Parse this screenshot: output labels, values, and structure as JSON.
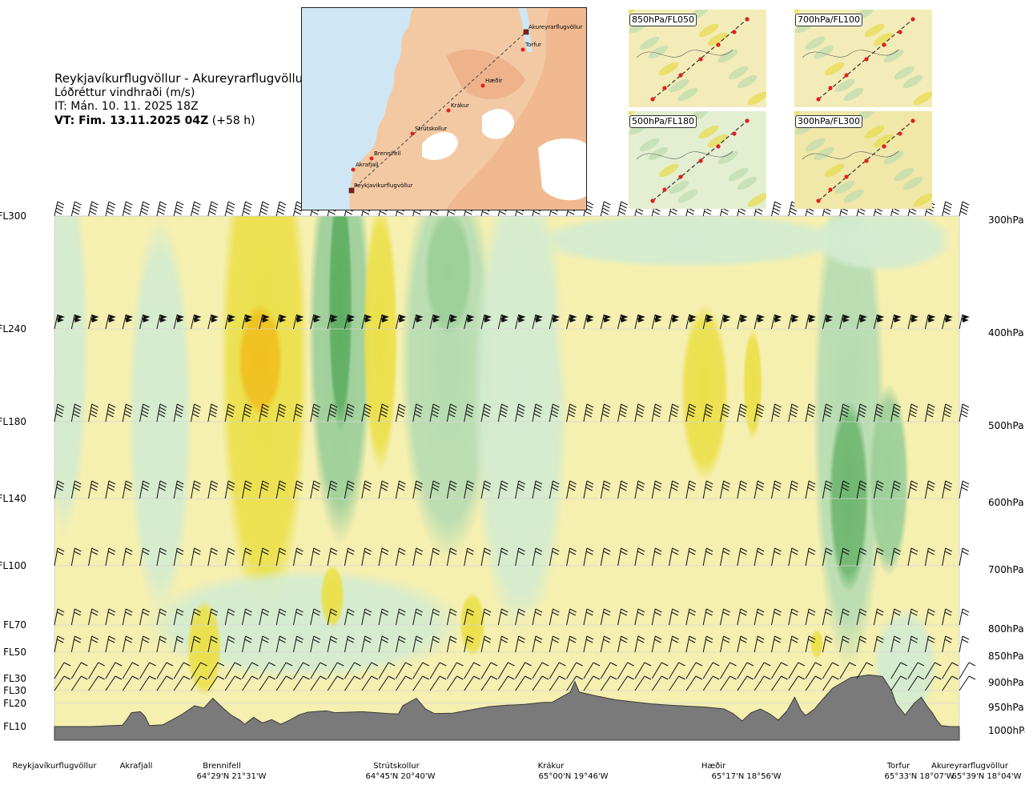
{
  "header": {
    "route": "Reykjavíkurflugvöllur - Akureyrarflugvöllur",
    "quantity": "Lóðréttur vindhraði (m/s)",
    "it": "IT: Mán. 10. 11. 2025 18Z",
    "vt_bold": "VT: Fim. 13.11.2025 04Z",
    "vt_lead": "(+58 h)"
  },
  "inset_map": {
    "points": [
      {
        "name": "Akureyrarflugvöllur",
        "marker": "square"
      },
      {
        "name": "Torfur",
        "marker": "dot"
      },
      {
        "name": "Hæðir",
        "marker": "dot"
      },
      {
        "name": "Krákur",
        "marker": "dot"
      },
      {
        "name": "Strútskollur",
        "marker": "dot"
      },
      {
        "name": "Brennifell",
        "marker": "dot"
      },
      {
        "name": "Akrafjall",
        "marker": "dot"
      },
      {
        "name": "Reykjavíkurflugvöllur",
        "marker": "square"
      }
    ]
  },
  "thumbnails": [
    {
      "label": "850hPa/FL050"
    },
    {
      "label": "700hPa/FL100"
    },
    {
      "label": "500hPa/FL180"
    },
    {
      "label": "300hPa/FL300"
    }
  ],
  "chart_data": {
    "type": "heatmap",
    "variable": "vertical wind speed (m/s)",
    "y_axis_left": [
      {
        "label": "FL300",
        "pressure": 300
      },
      {
        "label": "FL240",
        "pressure": 400
      },
      {
        "label": "FL180",
        "pressure": 500
      },
      {
        "label": "FL140",
        "pressure": 600
      },
      {
        "label": "FL100",
        "pressure": 700
      },
      {
        "label": "FL70",
        "pressure": 800
      },
      {
        "label": "FL50",
        "pressure": 850
      },
      {
        "label": "FL30",
        "pressure": 900
      },
      {
        "label": "FL30",
        "pressure": 925
      },
      {
        "label": "FL20",
        "pressure": 950
      },
      {
        "label": "FL10",
        "pressure": 1000
      }
    ],
    "y_axis_right": [
      "300hPa",
      "400hPa",
      "500hPa",
      "600hPa",
      "700hPa",
      "800hPa",
      "850hPa",
      "900hPa",
      "950hPa",
      "1000hPa"
    ],
    "right_pressures": [
      300,
      400,
      500,
      600,
      700,
      800,
      850,
      900,
      950,
      1000
    ],
    "grid": true,
    "x_range": [
      0,
      100
    ],
    "waypoints": [
      {
        "name": "Reykjavíkurflugvöllur",
        "coord": "",
        "x": 0
      },
      {
        "name": "Akrafjall",
        "coord": "",
        "x": 9
      },
      {
        "name": "Brennifell",
        "coord": "64°29'N 21°31'W",
        "x": 18.5
      },
      {
        "name": "Strútskollur",
        "coord": "64°45'N 20°40'W",
        "x": 38
      },
      {
        "name": "Krákur",
        "coord": "65°00'N 19°46'W",
        "x": 57
      },
      {
        "name": "Hæðir",
        "coord": "65°17'N 18°56'W",
        "x": 75
      },
      {
        "name": "Torfur",
        "coord": "65°33'N 18°07'W",
        "x": 94
      },
      {
        "name": "Akureyrarflugvöllur",
        "coord": "65°39'N 18°04'W",
        "x": 100
      }
    ],
    "terrain_pressure": [
      [
        0,
        1000
      ],
      [
        4,
        1000
      ],
      [
        7.5,
        997
      ],
      [
        8,
        985
      ],
      [
        8.5,
        970
      ],
      [
        9.5,
        968
      ],
      [
        10,
        978
      ],
      [
        10.5,
        998
      ],
      [
        12,
        996
      ],
      [
        14,
        975
      ],
      [
        15.5,
        955
      ],
      [
        16.5,
        960
      ],
      [
        17.5,
        940
      ],
      [
        18.5,
        958
      ],
      [
        19.5,
        975
      ],
      [
        20.5,
        986
      ],
      [
        21,
        995
      ],
      [
        22,
        980
      ],
      [
        23,
        992
      ],
      [
        24,
        985
      ],
      [
        25,
        995
      ],
      [
        26,
        986
      ],
      [
        27,
        975
      ],
      [
        28,
        969
      ],
      [
        30,
        966
      ],
      [
        31,
        970
      ],
      [
        34,
        968
      ],
      [
        37,
        972
      ],
      [
        38,
        973
      ],
      [
        38.5,
        955
      ],
      [
        40,
        940
      ],
      [
        41,
        962
      ],
      [
        42,
        972
      ],
      [
        44,
        971
      ],
      [
        46,
        964
      ],
      [
        48,
        957
      ],
      [
        50,
        954
      ],
      [
        52,
        952
      ],
      [
        54,
        948
      ],
      [
        55,
        948
      ],
      [
        56,
        938
      ],
      [
        57,
        928
      ],
      [
        57.5,
        906
      ],
      [
        58,
        928
      ],
      [
        60,
        936
      ],
      [
        62,
        943
      ],
      [
        64,
        947
      ],
      [
        66,
        951
      ],
      [
        68,
        954
      ],
      [
        70,
        956
      ],
      [
        72,
        958
      ],
      [
        74,
        962
      ],
      [
        75,
        972
      ],
      [
        76,
        988
      ],
      [
        77,
        970
      ],
      [
        78,
        962
      ],
      [
        79,
        972
      ],
      [
        80,
        986
      ],
      [
        81,
        965
      ],
      [
        81.8,
        938
      ],
      [
        82.5,
        965
      ],
      [
        83,
        976
      ],
      [
        84,
        962
      ],
      [
        85,
        940
      ],
      [
        86,
        920
      ],
      [
        88,
        898
      ],
      [
        90,
        893
      ],
      [
        91.5,
        896
      ],
      [
        92.5,
        925
      ],
      [
        93,
        950
      ],
      [
        94,
        975
      ],
      [
        95,
        950
      ],
      [
        95.8,
        938
      ],
      [
        96.5,
        958
      ],
      [
        97,
        970
      ],
      [
        97.5,
        986
      ],
      [
        98,
        998
      ],
      [
        99,
        1000
      ],
      [
        100,
        1000
      ]
    ],
    "legend": "none",
    "colorbar": "none"
  }
}
